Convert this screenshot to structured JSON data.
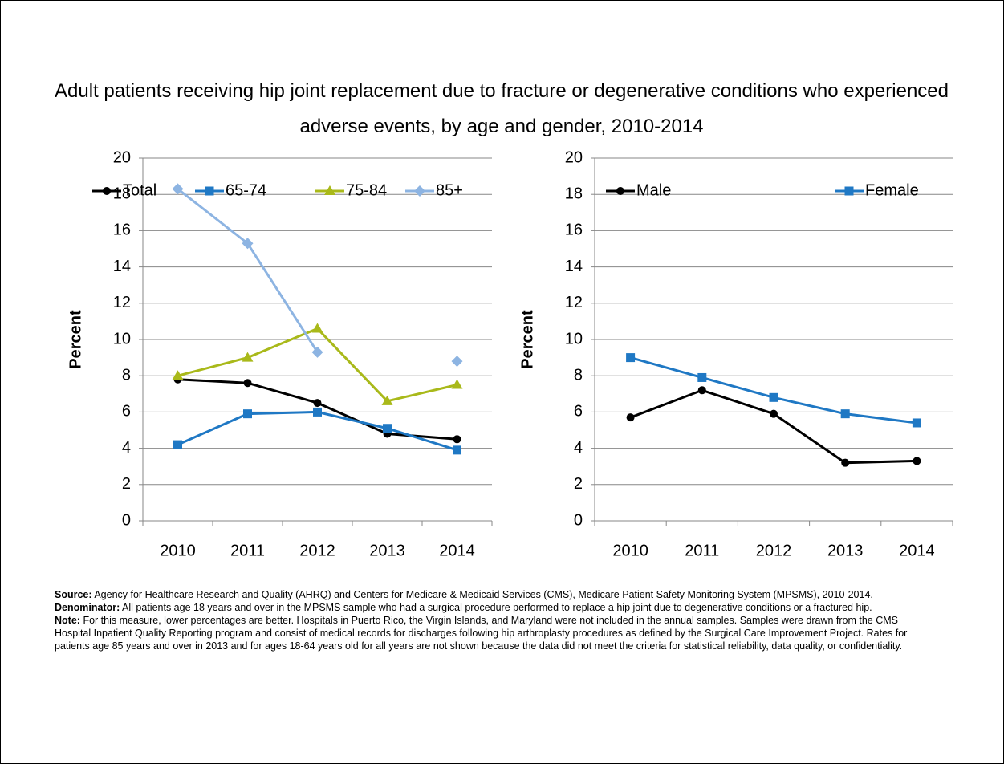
{
  "title": "Adult patients receiving hip joint replacement due to fracture or degenerative conditions who experienced adverse events, by age and gender, 2010-2014",
  "chart_data": [
    {
      "type": "line",
      "y_label": "Percent",
      "categories": [
        "2010",
        "2011",
        "2012",
        "2013",
        "2014"
      ],
      "ylim": [
        0,
        20
      ],
      "yticks": [
        0,
        2,
        4,
        6,
        8,
        10,
        12,
        14,
        16,
        18,
        20
      ],
      "grid": true,
      "series": [
        {
          "name": "Total",
          "color": "#000000",
          "marker": "circle",
          "values": [
            7.8,
            7.6,
            6.5,
            4.8,
            4.5
          ]
        },
        {
          "name": "65-74",
          "color": "#1f78c4",
          "marker": "square",
          "values": [
            4.2,
            5.9,
            6.0,
            5.1,
            3.9
          ]
        },
        {
          "name": "75-84",
          "color": "#a9b91a",
          "marker": "triangle",
          "values": [
            8.0,
            9.0,
            10.6,
            6.6,
            7.5
          ]
        },
        {
          "name": "85+",
          "color": "#8db4e2",
          "marker": "diamond",
          "values": [
            18.3,
            15.3,
            9.3,
            null,
            8.8
          ]
        }
      ]
    },
    {
      "type": "line",
      "y_label": "Percent",
      "categories": [
        "2010",
        "2011",
        "2012",
        "2013",
        "2014"
      ],
      "ylim": [
        0,
        20
      ],
      "yticks": [
        0,
        2,
        4,
        6,
        8,
        10,
        12,
        14,
        16,
        18,
        20
      ],
      "grid": true,
      "series": [
        {
          "name": "Male",
          "color": "#000000",
          "marker": "circle",
          "values": [
            5.7,
            7.2,
            5.9,
            3.2,
            3.3
          ]
        },
        {
          "name": "Female",
          "color": "#1f78c4",
          "marker": "square",
          "values": [
            9.0,
            7.9,
            6.8,
            5.9,
            5.4
          ]
        }
      ]
    }
  ],
  "notes": [
    {
      "label": "Source:",
      "text": "Agency for Healthcare Research and Quality (AHRQ) and Centers for Medicare & Medicaid Services (CMS), Medicare Patient Safety Monitoring System (MPSMS), 2010-2014."
    },
    {
      "label": "Denominator:",
      "text": "All patients age 18 years and over in the MPSMS sample who had a surgical procedure performed to replace a hip joint due to degenerative conditions or a fractured hip."
    },
    {
      "label": "Note:",
      "text": "For this measure, lower percentages are better. Hospitals in Puerto Rico, the Virgin Islands, and Maryland were not included in the annual samples. Samples were drawn from the CMS Hospital Inpatient Quality Reporting program and consist of medical records for discharges following hip arthroplasty procedures as defined by the Surgical Care Improvement Project. Rates for patients age 85 years and over in 2013 and for ages 18-64 years old for all years are not shown because the data did not meet the criteria for statistical reliability, data quality, or confidentiality."
    }
  ]
}
